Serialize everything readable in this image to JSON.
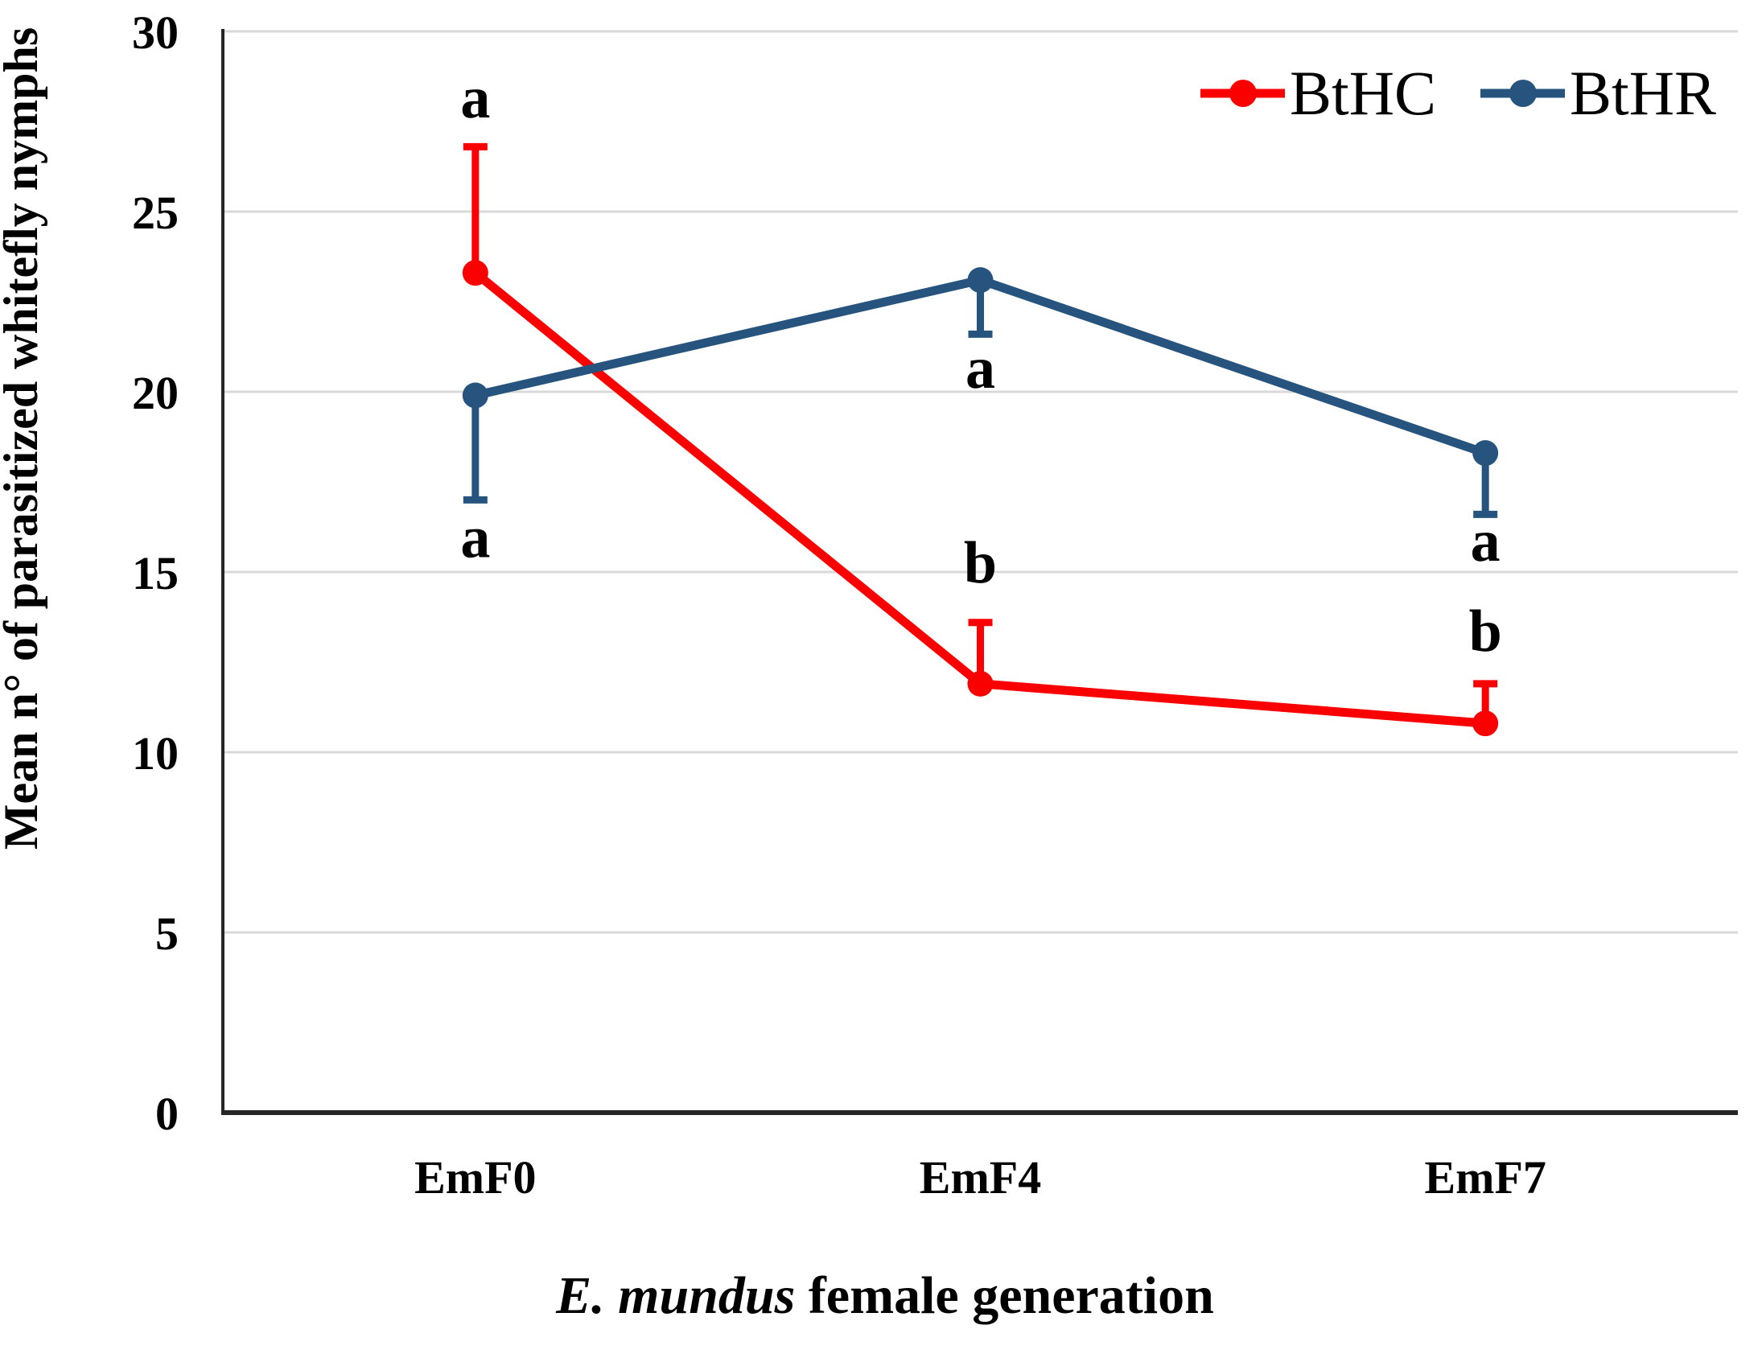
{
  "chart_data": {
    "type": "line",
    "categories": [
      "EmF0",
      "EmF4",
      "EmF7"
    ],
    "xlabel_italic": "E. mundus",
    "xlabel_rest": " female generation",
    "ylabel": "Mean n° of parasitized whitefly nymphs",
    "ylim": [
      0,
      30
    ],
    "yticks": [
      "0",
      "5",
      "10",
      "15",
      "20",
      "25",
      "30"
    ],
    "ytick_values": [
      0,
      5,
      10,
      15,
      20,
      25,
      30
    ],
    "grid": true,
    "gridline_color": "#d9d9d9",
    "axis_color": "#262626",
    "letter_color": "#000000",
    "legend_position": "top-right",
    "series": [
      {
        "name": "BtHC",
        "color": "#fb0000",
        "values": [
          23.3,
          11.9,
          10.8
        ],
        "error_up": [
          3.5,
          1.7,
          1.1
        ],
        "error_down": [
          0,
          0,
          0
        ],
        "sig_letters": [
          {
            "text": "a",
            "y": 28.1
          },
          {
            "text": "b",
            "y": 15.2
          },
          {
            "text": "b",
            "y": 13.3
          }
        ]
      },
      {
        "name": "BtHR",
        "color": "#26547e",
        "values": [
          19.9,
          23.1,
          18.3
        ],
        "error_up": [
          0,
          0,
          0
        ],
        "error_down": [
          2.9,
          1.5,
          1.7
        ],
        "sig_letters": [
          {
            "text": "a",
            "y": 15.9
          },
          {
            "text": "a",
            "y": 20.6
          },
          {
            "text": "a",
            "y": 15.8
          }
        ]
      }
    ]
  }
}
